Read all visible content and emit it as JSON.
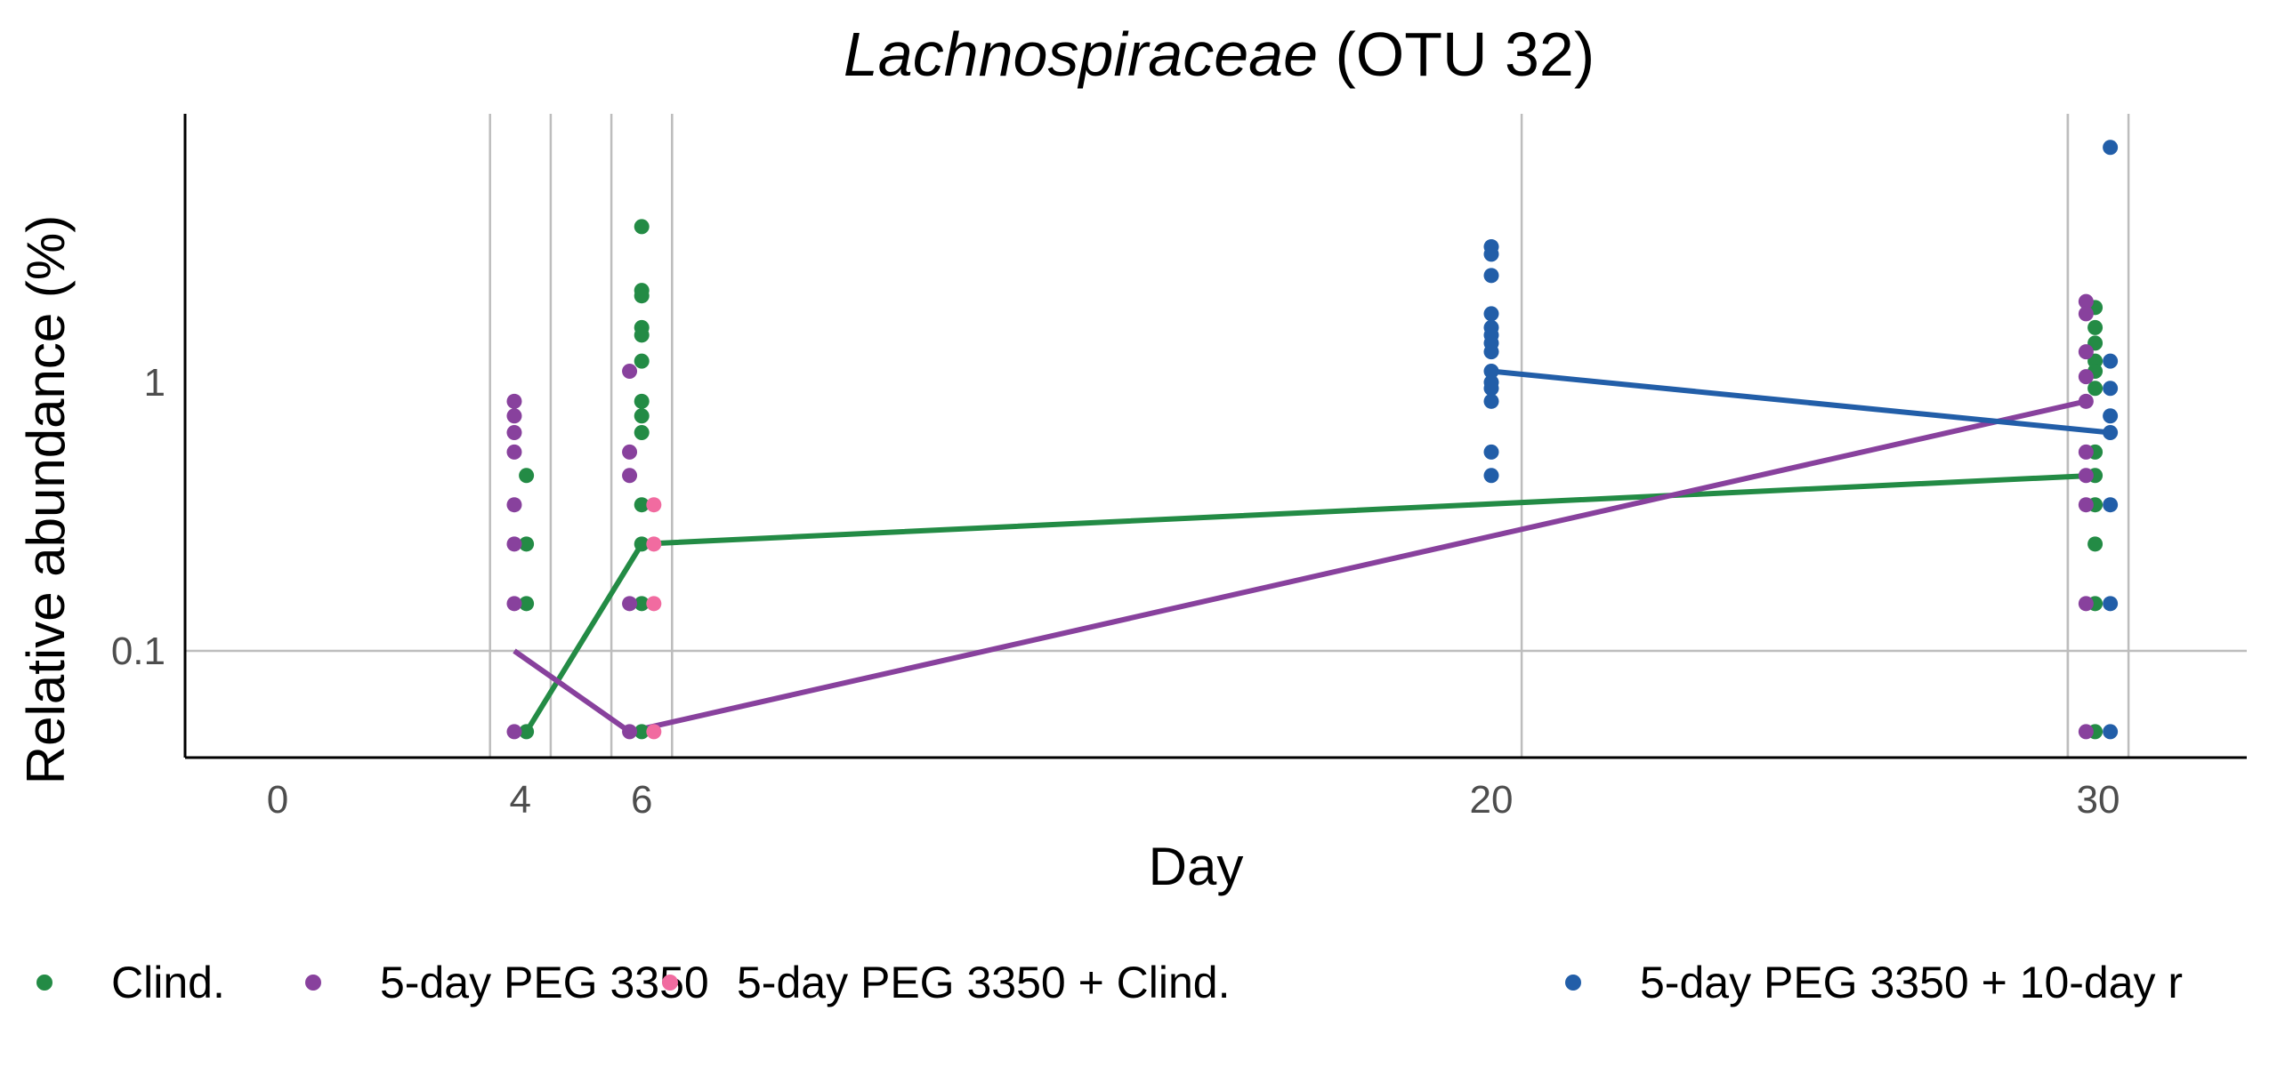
{
  "chart_data": {
    "type": "scatter",
    "title_italic": "Lachnospiraceae",
    "title_rest": "(OTU 32)",
    "xlabel": "Day",
    "ylabel": "Relative abundance (%)",
    "y_scale": "log",
    "xlim": [
      -1.5,
      32.5
    ],
    "ylim": [
      0.04,
      8.5
    ],
    "x_ticks": [
      0,
      4,
      6,
      20,
      30
    ],
    "y_ticks": [
      {
        "value": 0.1,
        "label": "0.1"
      },
      {
        "value": 1,
        "label": "1"
      }
    ],
    "grid": "vertical lines at each sampling day per group, horizontal line at 0.1",
    "legend_position": "bottom",
    "series": [
      {
        "name": "Clind.",
        "color": "#238b45",
        "days": [
          4,
          6,
          30
        ],
        "points": [
          [
            4.1,
            0.45
          ],
          [
            4.1,
            0.25
          ],
          [
            4.1,
            0.15
          ],
          [
            4.1,
            0.05
          ],
          [
            6.0,
            3.8
          ],
          [
            6.0,
            2.2
          ],
          [
            6.0,
            2.1
          ],
          [
            6.0,
            1.6
          ],
          [
            6.0,
            1.5
          ],
          [
            6.0,
            1.2
          ],
          [
            6.0,
            0.85
          ],
          [
            6.0,
            0.75
          ],
          [
            6.0,
            0.65
          ],
          [
            6.0,
            0.35
          ],
          [
            6.0,
            0.25
          ],
          [
            6.0,
            0.15
          ],
          [
            6.0,
            0.05
          ],
          [
            29.95,
            1.9
          ],
          [
            29.95,
            1.6
          ],
          [
            29.95,
            1.4
          ],
          [
            29.95,
            1.2
          ],
          [
            29.95,
            1.1
          ],
          [
            29.95,
            0.95
          ],
          [
            29.95,
            0.55
          ],
          [
            29.95,
            0.45
          ],
          [
            29.95,
            0.35
          ],
          [
            29.95,
            0.25
          ],
          [
            29.95,
            0.15
          ],
          [
            29.95,
            0.05
          ]
        ],
        "median_line": [
          [
            4.1,
            0.05
          ],
          [
            6.0,
            0.25
          ],
          [
            29.95,
            0.45
          ]
        ]
      },
      {
        "name": "5-day PEG 3350",
        "color": "#88419d",
        "days": [
          4,
          6,
          30
        ],
        "points": [
          [
            3.9,
            0.85
          ],
          [
            3.9,
            0.75
          ],
          [
            3.9,
            0.65
          ],
          [
            3.9,
            0.55
          ],
          [
            3.9,
            0.35
          ],
          [
            3.9,
            0.25
          ],
          [
            3.9,
            0.15
          ],
          [
            3.9,
            0.05
          ],
          [
            5.8,
            1.1
          ],
          [
            5.8,
            0.55
          ],
          [
            5.8,
            0.45
          ],
          [
            5.8,
            0.15
          ],
          [
            5.8,
            0.05
          ],
          [
            29.8,
            2.0
          ],
          [
            29.8,
            1.8
          ],
          [
            29.8,
            1.3
          ],
          [
            29.8,
            1.05
          ],
          [
            29.8,
            0.85
          ],
          [
            29.8,
            0.55
          ],
          [
            29.8,
            0.45
          ],
          [
            29.8,
            0.35
          ],
          [
            29.8,
            0.15
          ],
          [
            29.8,
            0.05
          ]
        ],
        "median_line": [
          [
            3.9,
            0.1
          ],
          [
            5.8,
            0.05
          ],
          [
            29.8,
            0.85
          ]
        ]
      },
      {
        "name": "5-day PEG 3350 + Clind.",
        "color": "#f16ba0",
        "days": [
          6
        ],
        "points": [
          [
            6.2,
            0.35
          ],
          [
            6.2,
            0.25
          ],
          [
            6.2,
            0.15
          ],
          [
            6.2,
            0.05
          ]
        ],
        "median_line": []
      },
      {
        "name": "5-day PEG 3350 + 10-day r",
        "color": "#225ea8",
        "days": [
          20,
          30
        ],
        "points": [
          [
            20.0,
            3.2
          ],
          [
            20.0,
            3.0
          ],
          [
            20.0,
            2.5
          ],
          [
            20.0,
            1.8
          ],
          [
            20.0,
            1.6
          ],
          [
            20.0,
            1.5
          ],
          [
            20.0,
            1.4
          ],
          [
            20.0,
            1.3
          ],
          [
            20.0,
            1.1
          ],
          [
            20.0,
            1.0
          ],
          [
            20.0,
            0.95
          ],
          [
            20.0,
            0.85
          ],
          [
            20.0,
            0.55
          ],
          [
            20.0,
            0.45
          ],
          [
            30.2,
            7.5
          ],
          [
            30.2,
            1.2
          ],
          [
            30.2,
            0.95
          ],
          [
            30.2,
            0.75
          ],
          [
            30.2,
            0.65
          ],
          [
            30.2,
            0.35
          ],
          [
            30.2,
            0.15
          ],
          [
            30.2,
            0.05
          ]
        ],
        "median_line": [
          [
            20.0,
            1.1
          ],
          [
            30.2,
            0.65
          ]
        ]
      }
    ]
  }
}
